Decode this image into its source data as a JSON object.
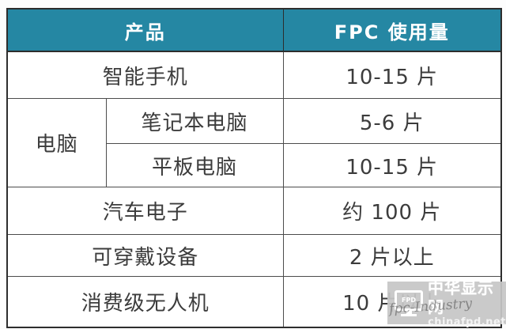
{
  "table": {
    "header": {
      "product": "产品",
      "fpc_usage": "FPC 使用量"
    },
    "rows": [
      {
        "product": "智能手机",
        "usage": "10-15 片"
      },
      {
        "category": "电脑",
        "product": "笔记本电脑",
        "usage": "5-6 片"
      },
      {
        "product": "平板电脑",
        "usage": "10-15 片"
      },
      {
        "product": "汽车电子",
        "usage": "约 100 片"
      },
      {
        "product": "可穿戴设备",
        "usage": "2 片以上"
      },
      {
        "product": "消费级无人机",
        "usage": "10 片以上"
      }
    ]
  },
  "chart_data": {
    "type": "table",
    "title": "",
    "columns": [
      "产品",
      "FPC 使用量"
    ],
    "rows": [
      [
        "智能手机",
        "10-15 片"
      ],
      [
        "电脑 / 笔记本电脑",
        "5-6 片"
      ],
      [
        "电脑 / 平板电脑",
        "10-15 片"
      ],
      [
        "汽车电子",
        "约 100 片"
      ],
      [
        "可穿戴设备",
        "2 片以上"
      ],
      [
        "消费级无人机",
        "10 片以上"
      ]
    ],
    "layout": "first column merged: 电脑 spans 笔记本电脑 and 平板电脑 rows; other product cells span both sub-columns"
  },
  "watermark": {
    "monitor_icon_label": "FPD",
    "site_name": "中华显示网",
    "site_url": "chinafpd.net",
    "script_text": "fpc-Industry"
  },
  "colors": {
    "header_bg": "#2587a3",
    "header_text": "#ffffff",
    "body_text": "#3c3c3c",
    "border_inner": "#4c4c4c",
    "border_outer": "#2d2d2d",
    "watermark_bg": "#c6c6c6",
    "watermark_text": "#ffffff"
  }
}
